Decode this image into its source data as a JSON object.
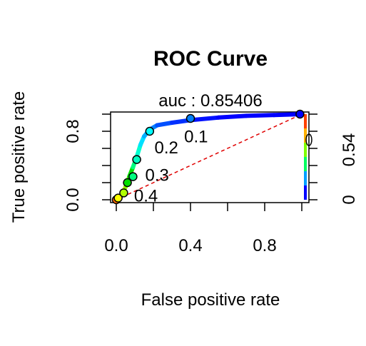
{
  "chart_data": {
    "type": "line",
    "title": "ROC Curve",
    "subtitle": "auc :  0.85406",
    "xlabel": "False positive rate",
    "ylabel": "True positive rate",
    "xlim": [
      0,
      1
    ],
    "ylim": [
      0,
      1
    ],
    "x_ticks": [
      "0.0",
      "0.4",
      "0.8"
    ],
    "y_ticks": [
      "0.0",
      "0.8"
    ],
    "colorkey_ticks": [
      "0",
      "0.54"
    ],
    "grid": false,
    "colorize_by": "cutoff",
    "diagonal": {
      "x": [
        0,
        1
      ],
      "y": [
        0,
        1
      ],
      "color": "#e00000",
      "style": "dashed"
    },
    "series": [
      {
        "x": [
          0.0,
          0.01,
          0.03,
          0.05,
          0.07,
          0.09,
          0.11,
          0.13,
          0.15,
          0.18,
          0.22,
          0.3,
          0.4,
          0.55,
          0.7,
          0.85,
          1.0
        ],
        "y": [
          0.0,
          0.02,
          0.06,
          0.15,
          0.27,
          0.38,
          0.5,
          0.64,
          0.74,
          0.82,
          0.87,
          0.9,
          0.93,
          0.96,
          0.98,
          0.99,
          1.0
        ]
      }
    ],
    "points": [
      {
        "x": 0.0,
        "y": 0.0,
        "color": "#ff6a00"
      },
      {
        "x": 0.01,
        "y": 0.02,
        "color": "#ffff00"
      },
      {
        "x": 0.04,
        "y": 0.08,
        "color": "#b0ff00"
      },
      {
        "x": 0.06,
        "y": 0.2,
        "color": "#00e000"
      },
      {
        "x": 0.09,
        "y": 0.27,
        "color": "#00ff80"
      },
      {
        "x": 0.11,
        "y": 0.47,
        "color": "#00ffc0"
      },
      {
        "x": 0.18,
        "y": 0.8,
        "color": "#00ffff"
      },
      {
        "x": 0.4,
        "y": 0.95,
        "color": "#0080ff"
      },
      {
        "x": 0.99,
        "y": 1.0,
        "color": "#0000ff"
      }
    ],
    "threshold_labels": [
      {
        "text": "0.1",
        "x": 0.43,
        "y": 0.67
      },
      {
        "text": "0.2",
        "x": 0.27,
        "y": 0.54
      },
      {
        "text": "0.3",
        "x": 0.22,
        "y": 0.22
      },
      {
        "text": "0.4",
        "x": 0.16,
        "y": -0.02
      }
    ]
  }
}
